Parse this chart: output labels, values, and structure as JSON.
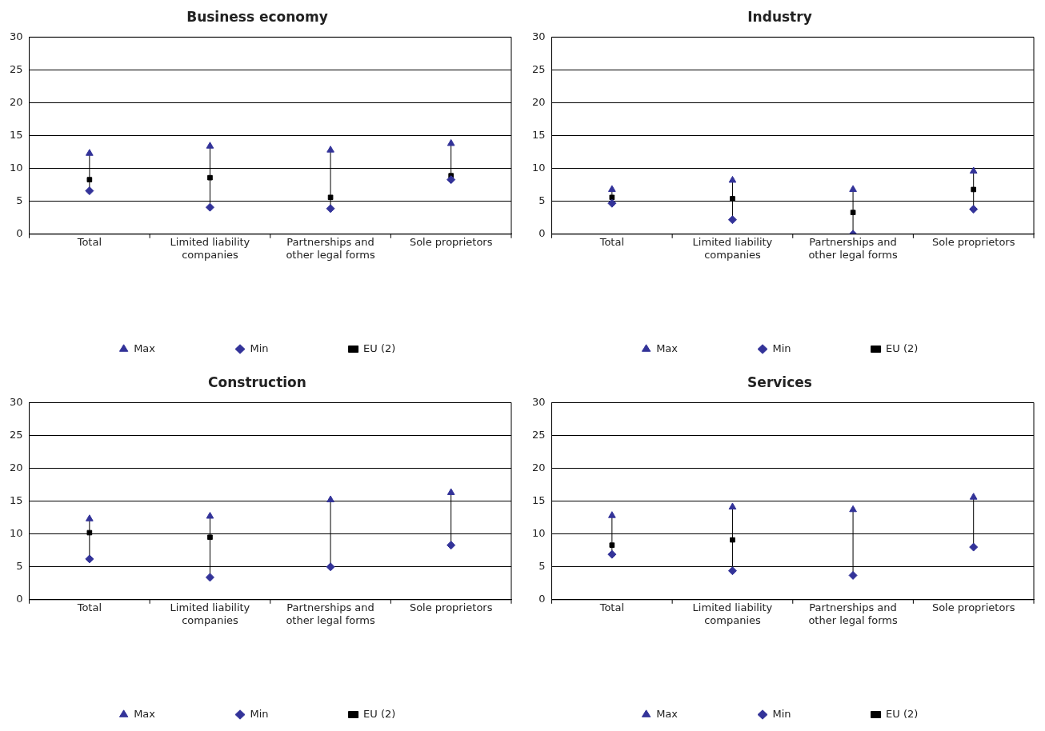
{
  "chart_data": [
    {
      "type": "scatter",
      "title": "Business economy",
      "categories": [
        "Total",
        "Limited liability companies",
        "Partnerships and other legal forms",
        "Sole proprietors"
      ],
      "ylim": [
        0,
        30
      ],
      "yticks": [
        0,
        5,
        10,
        15,
        20,
        25,
        30
      ],
      "grid": "y",
      "legend": "bottom",
      "series": [
        {
          "name": "Max",
          "color": "#333399",
          "marker": "triangle",
          "values": [
            12.3,
            13.4,
            12.8,
            13.8
          ]
        },
        {
          "name": "Min",
          "color": "#333399",
          "marker": "diamond",
          "values": [
            6.6,
            4.1,
            3.9,
            8.3
          ]
        },
        {
          "name": "EU (2)",
          "color": "#000000",
          "marker": "square",
          "values": [
            8.3,
            8.6,
            5.6,
            8.9
          ]
        }
      ]
    },
    {
      "type": "scatter",
      "title": "Industry",
      "categories": [
        "Total",
        "Limited liability companies",
        "Partnerships and other legal forms",
        "Sole proprietors"
      ],
      "ylim": [
        0,
        30
      ],
      "yticks": [
        0,
        5,
        10,
        15,
        20,
        25,
        30
      ],
      "grid": "y",
      "legend": "bottom",
      "series": [
        {
          "name": "Max",
          "color": "#333399",
          "marker": "triangle",
          "values": [
            6.8,
            8.2,
            6.8,
            9.6
          ]
        },
        {
          "name": "Min",
          "color": "#333399",
          "marker": "diamond",
          "values": [
            4.7,
            2.2,
            0,
            3.8
          ]
        },
        {
          "name": "EU (2)",
          "color": "#000000",
          "marker": "square",
          "values": [
            5.6,
            5.4,
            3.3,
            6.8
          ]
        }
      ]
    },
    {
      "type": "scatter",
      "title": "Construction",
      "categories": [
        "Total",
        "Limited liability companies",
        "Partnerships and other legal forms",
        "Sole proprietors"
      ],
      "ylim": [
        0,
        30
      ],
      "yticks": [
        0,
        5,
        10,
        15,
        20,
        25,
        30
      ],
      "grid": "y",
      "legend": "bottom",
      "series": [
        {
          "name": "Max",
          "color": "#333399",
          "marker": "triangle",
          "values": [
            12.3,
            12.7,
            15.2,
            16.3
          ]
        },
        {
          "name": "Min",
          "color": "#333399",
          "marker": "diamond",
          "values": [
            6.2,
            3.4,
            5.0,
            8.3
          ]
        },
        {
          "name": "EU (2)",
          "color": "#000000",
          "marker": "square",
          "values": [
            10.2,
            9.5,
            null,
            null
          ]
        }
      ]
    },
    {
      "type": "scatter",
      "title": "Services",
      "categories": [
        "Total",
        "Limited liability companies",
        "Partnerships and other legal forms",
        "Sole proprietors"
      ],
      "ylim": [
        0,
        30
      ],
      "yticks": [
        0,
        5,
        10,
        15,
        20,
        25,
        30
      ],
      "grid": "y",
      "legend": "bottom",
      "series": [
        {
          "name": "Max",
          "color": "#333399",
          "marker": "triangle",
          "values": [
            12.8,
            14.1,
            13.7,
            15.6
          ]
        },
        {
          "name": "Min",
          "color": "#333399",
          "marker": "diamond",
          "values": [
            6.9,
            4.4,
            3.7,
            8.0
          ]
        },
        {
          "name": "EU (2)",
          "color": "#000000",
          "marker": "square",
          "values": [
            8.3,
            9.1,
            null,
            null
          ]
        }
      ]
    }
  ]
}
